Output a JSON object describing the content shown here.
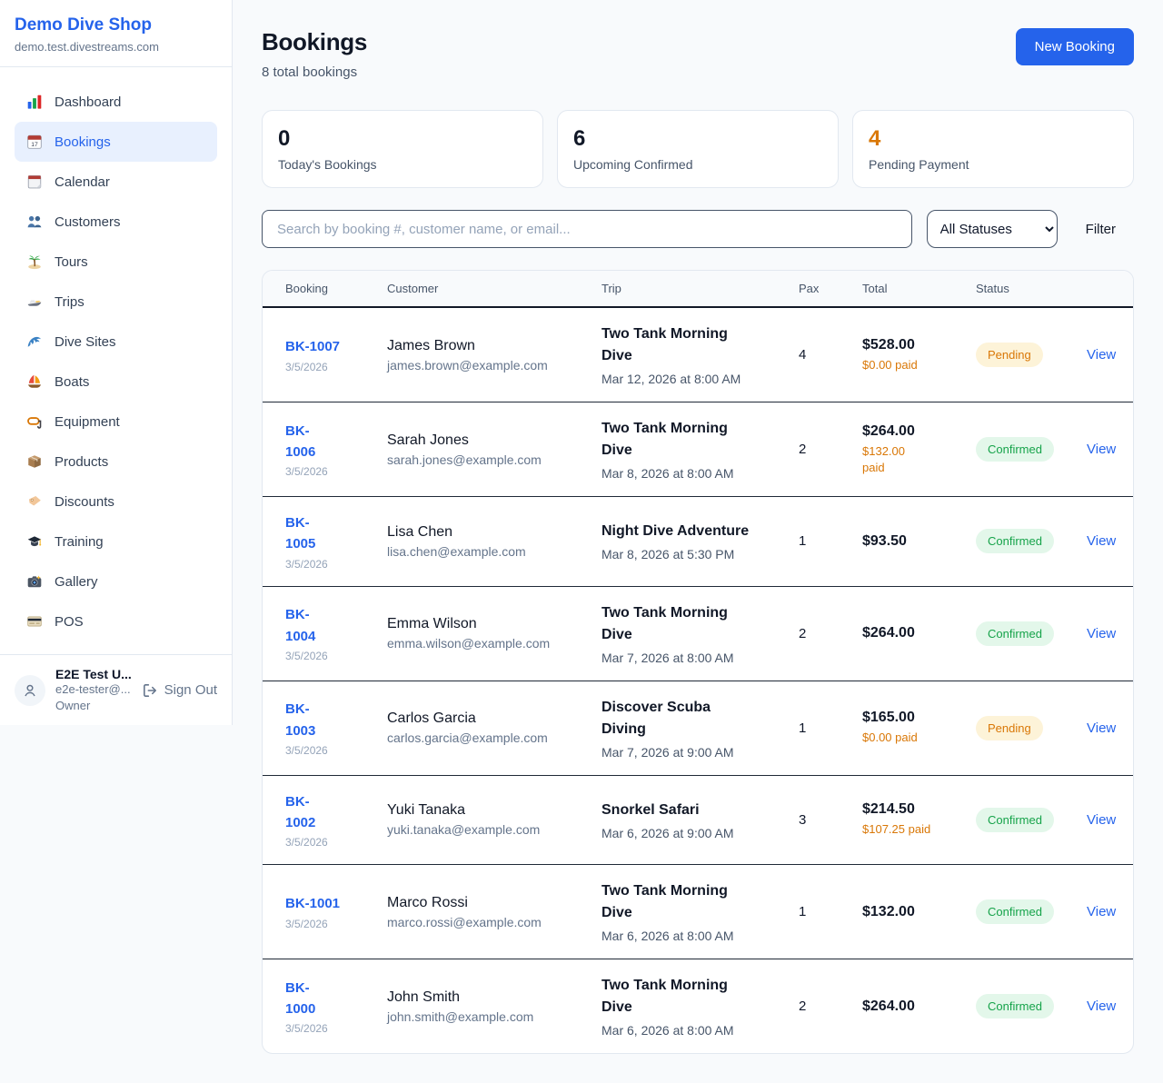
{
  "sidebar": {
    "shop_name": "Demo Dive Shop",
    "shop_domain": "demo.test.divestreams.com",
    "items": [
      {
        "icon": "dashboard-icon",
        "label": "Dashboard",
        "active": false
      },
      {
        "icon": "bookings-icon",
        "label": "Bookings",
        "active": true
      },
      {
        "icon": "calendar-icon",
        "label": "Calendar",
        "active": false
      },
      {
        "icon": "customers-icon",
        "label": "Customers",
        "active": false
      },
      {
        "icon": "tours-icon",
        "label": "Tours",
        "active": false
      },
      {
        "icon": "trips-icon",
        "label": "Trips",
        "active": false
      },
      {
        "icon": "dive-sites-icon",
        "label": "Dive Sites",
        "active": false
      },
      {
        "icon": "boats-icon",
        "label": "Boats",
        "active": false
      },
      {
        "icon": "equipment-icon",
        "label": "Equipment",
        "active": false
      },
      {
        "icon": "products-icon",
        "label": "Products",
        "active": false
      },
      {
        "icon": "discounts-icon",
        "label": "Discounts",
        "active": false
      },
      {
        "icon": "training-icon",
        "label": "Training",
        "active": false
      },
      {
        "icon": "gallery-icon",
        "label": "Gallery",
        "active": false
      },
      {
        "icon": "pos-icon",
        "label": "POS",
        "active": false
      }
    ],
    "user": {
      "name": "E2E Test U...",
      "email": "e2e-tester@...",
      "role": "Owner",
      "sign_out_label": "Sign Out"
    }
  },
  "header": {
    "title": "Bookings",
    "subtitle": "8 total bookings",
    "new_booking_label": "New Booking"
  },
  "stats": [
    {
      "value": "0",
      "label": "Today's Bookings",
      "color": "dark"
    },
    {
      "value": "6",
      "label": "Upcoming Confirmed",
      "color": "dark"
    },
    {
      "value": "4",
      "label": "Pending Payment",
      "color": "orange"
    }
  ],
  "filters": {
    "search_placeholder": "Search by booking #, customer name, or email...",
    "status_selected": "All Statuses",
    "filter_label": "Filter"
  },
  "table": {
    "columns": [
      "Booking",
      "Customer",
      "Trip",
      "Pax",
      "Total",
      "Status",
      ""
    ],
    "rows": [
      {
        "booking_lines": [
          "BK-1007"
        ],
        "booking_date": "3/5/2026",
        "customer_name": "James Brown",
        "customer_email": "james.brown@example.com",
        "trip_lines": [
          "Two Tank Morning",
          "Dive"
        ],
        "trip_datetime": "Mar 12, 2026 at 8:00 AM",
        "pax": "4",
        "total": "$528.00",
        "paid_lines": [
          "$0.00 paid"
        ],
        "status": "Pending",
        "action": "View"
      },
      {
        "booking_lines": [
          "BK-",
          "1006"
        ],
        "booking_date": "3/5/2026",
        "customer_name": "Sarah Jones",
        "customer_email": "sarah.jones@example.com",
        "trip_lines": [
          "Two Tank Morning",
          "Dive"
        ],
        "trip_datetime": "Mar 8, 2026 at 8:00 AM",
        "pax": "2",
        "total": "$264.00",
        "paid_lines": [
          "$132.00",
          "paid"
        ],
        "status": "Confirmed",
        "action": "View"
      },
      {
        "booking_lines": [
          "BK-",
          "1005"
        ],
        "booking_date": "3/5/2026",
        "customer_name": "Lisa Chen",
        "customer_email": "lisa.chen@example.com",
        "trip_lines": [
          "Night Dive Adventure"
        ],
        "trip_datetime": "Mar 8, 2026 at 5:30 PM",
        "pax": "1",
        "total": "$93.50",
        "paid_lines": [],
        "status": "Confirmed",
        "action": "View"
      },
      {
        "booking_lines": [
          "BK-",
          "1004"
        ],
        "booking_date": "3/5/2026",
        "customer_name": "Emma Wilson",
        "customer_email": "emma.wilson@example.com",
        "trip_lines": [
          "Two Tank Morning",
          "Dive"
        ],
        "trip_datetime": "Mar 7, 2026 at 8:00 AM",
        "pax": "2",
        "total": "$264.00",
        "paid_lines": [],
        "status": "Confirmed",
        "action": "View"
      },
      {
        "booking_lines": [
          "BK-",
          "1003"
        ],
        "booking_date": "3/5/2026",
        "customer_name": "Carlos Garcia",
        "customer_email": "carlos.garcia@example.com",
        "trip_lines": [
          "Discover Scuba",
          "Diving"
        ],
        "trip_datetime": "Mar 7, 2026 at 9:00 AM",
        "pax": "1",
        "total": "$165.00",
        "paid_lines": [
          "$0.00 paid"
        ],
        "status": "Pending",
        "action": "View"
      },
      {
        "booking_lines": [
          "BK-",
          "1002"
        ],
        "booking_date": "3/5/2026",
        "customer_name": "Yuki Tanaka",
        "customer_email": "yuki.tanaka@example.com",
        "trip_lines": [
          "Snorkel Safari"
        ],
        "trip_datetime": "Mar 6, 2026 at 9:00 AM",
        "pax": "3",
        "total": "$214.50",
        "paid_lines": [
          "$107.25 paid"
        ],
        "status": "Confirmed",
        "action": "View"
      },
      {
        "booking_lines": [
          "BK-1001"
        ],
        "booking_date": "3/5/2026",
        "customer_name": "Marco Rossi",
        "customer_email": "marco.rossi@example.com",
        "trip_lines": [
          "Two Tank Morning",
          "Dive"
        ],
        "trip_datetime": "Mar 6, 2026 at 8:00 AM",
        "pax": "1",
        "total": "$132.00",
        "paid_lines": [],
        "status": "Confirmed",
        "action": "View"
      },
      {
        "booking_lines": [
          "BK-",
          "1000"
        ],
        "booking_date": "3/5/2026",
        "customer_name": "John Smith",
        "customer_email": "john.smith@example.com",
        "trip_lines": [
          "Two Tank Morning",
          "Dive"
        ],
        "trip_datetime": "Mar 6, 2026 at 8:00 AM",
        "pax": "2",
        "total": "$264.00",
        "paid_lines": [],
        "status": "Confirmed",
        "action": "View"
      }
    ]
  },
  "colors": {
    "brand_blue": "#2563eb",
    "active_nav_bg": "#e8f0fe",
    "pending_text": "#d97706",
    "pending_bg": "#fdf3d8",
    "confirmed_text": "#16a34a",
    "confirmed_bg": "#e3f7ea",
    "paid_orange": "#d97706",
    "page_bg": "#f8fafc"
  }
}
